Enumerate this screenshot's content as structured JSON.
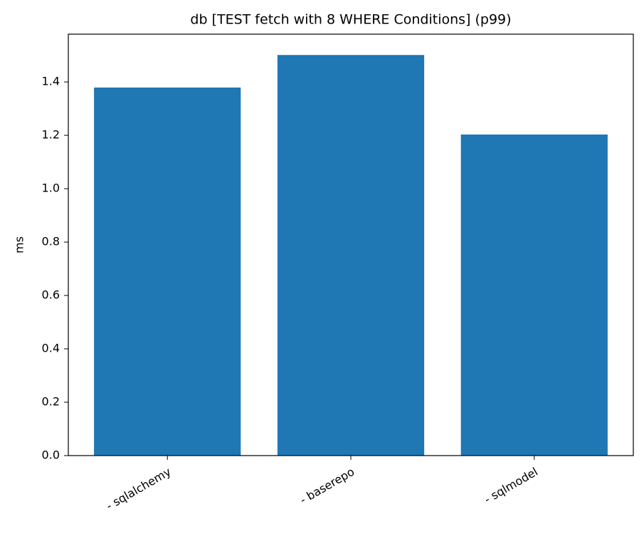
{
  "chart_data": {
    "type": "bar",
    "title": "db [TEST fetch with 8 WHERE Conditions] (p99)",
    "y_label": "ms",
    "categories": [
      "- sqlalchemy",
      "- baserepo",
      "- sqlmodel"
    ],
    "values": [
      1.379,
      1.501,
      1.203
    ],
    "color": "#1f77b4",
    "ylim": [
      0,
      1.579
    ],
    "yticks": [
      {
        "value": 0,
        "label": "0.0"
      },
      0.2,
      0.4,
      0.6,
      0.8,
      {
        "value": 1,
        "label": "1.0"
      },
      1.2,
      1.4
    ],
    "grid": false
  }
}
